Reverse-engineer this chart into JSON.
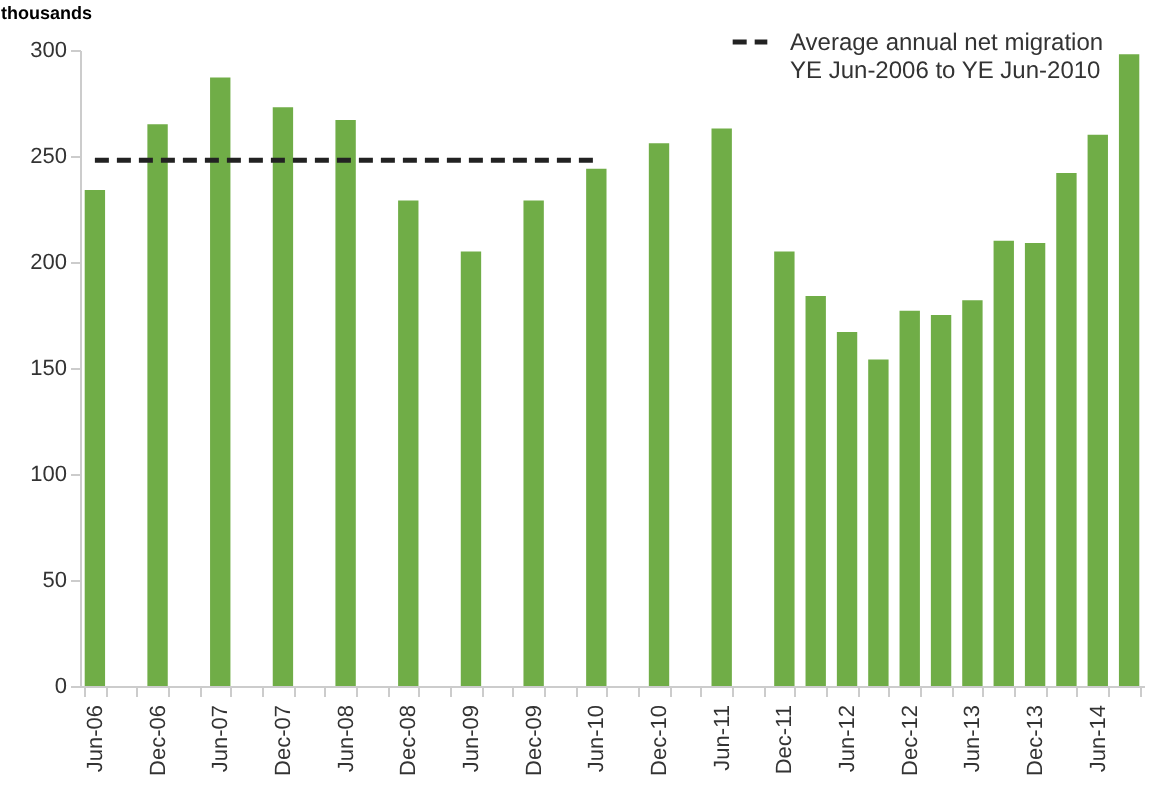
{
  "chart_data": {
    "type": "bar",
    "ylabel": "thousands",
    "categories": [
      "Jun-06",
      null,
      "Dec-06",
      null,
      "Jun-07",
      null,
      "Dec-07",
      null,
      "Jun-08",
      null,
      "Dec-08",
      null,
      "Jun-09",
      null,
      "Dec-09",
      null,
      "Jun-10",
      null,
      "Dec-10",
      null,
      "Jun-11",
      null,
      "Dec-11",
      null,
      "Jun-12",
      null,
      "Dec-12",
      null,
      "Jun-13",
      null,
      "Dec-13",
      null,
      "Jun-14",
      null
    ],
    "series": [
      {
        "color": "#70ad47",
        "values": [
          234,
          null,
          265,
          null,
          287,
          null,
          273,
          null,
          267,
          null,
          229,
          null,
          205,
          null,
          229,
          null,
          244,
          null,
          256,
          null,
          263,
          null,
          205,
          184,
          167,
          154,
          177,
          175,
          182,
          210,
          209,
          242,
          260,
          298
        ]
      },
      {
        "type": "line",
        "name": "Average annual net migration YE Jun-2006 to YE Jun-2010",
        "color": "#222222",
        "line_style": "dashed",
        "values": [
          248,
          248,
          248,
          248,
          248,
          248,
          248,
          248,
          248,
          248,
          248,
          248,
          248,
          248,
          248,
          248,
          248,
          null,
          null,
          null,
          null,
          null,
          null,
          null,
          null,
          null,
          null,
          null,
          null,
          null,
          null,
          null,
          null,
          null
        ]
      }
    ],
    "ylim": [
      0,
      300
    ],
    "yticks": [
      0,
      50,
      100,
      150,
      200,
      250,
      300
    ],
    "grid": false,
    "legend": "top right"
  }
}
